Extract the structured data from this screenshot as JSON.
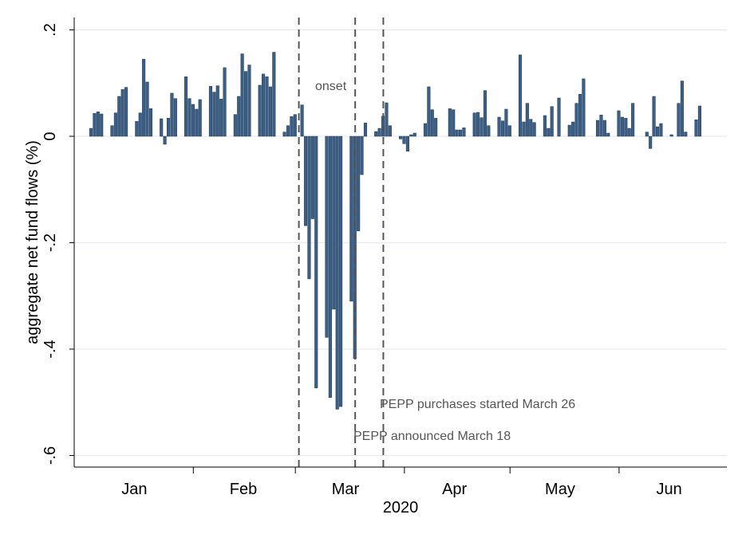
{
  "chart_data": {
    "type": "bar",
    "title": "",
    "xlabel": "2020",
    "ylabel": "aggregate net fund flows (%)",
    "ylim": [
      -0.62,
      0.22
    ],
    "yticks": [
      0.2,
      0,
      -0.2,
      -0.4,
      -0.6
    ],
    "ytick_labels": [
      ".2",
      "0",
      "-.2",
      "-.4",
      "-.6"
    ],
    "xtick_labels": [
      "Jan",
      "Feb",
      "Mar",
      "Apr",
      "May",
      "Jun"
    ],
    "xtick_dates": [
      "2020-01-15",
      "2020-02-15",
      "2020-03-15",
      "2020-04-15",
      "2020-05-15",
      "2020-06-15"
    ],
    "x_range": [
      "2019-12-30",
      "2020-07-01"
    ],
    "grid": true,
    "bar_color": "#3b5f87",
    "annotation_color": "#555555",
    "series": [
      {
        "x": [
          "2020-01-02",
          "2020-01-03",
          "2020-01-04",
          "2020-01-05",
          "2020-01-06",
          "2020-01-07",
          "2020-01-08",
          "2020-01-09",
          "2020-01-10",
          "2020-01-11",
          "2020-01-12",
          "2020-01-13",
          "2020-01-14",
          "2020-01-15",
          "2020-01-16",
          "2020-01-17",
          "2020-01-18",
          "2020-01-19",
          "2020-01-20",
          "2020-01-21",
          "2020-01-22",
          "2020-01-23",
          "2020-01-24",
          "2020-01-25",
          "2020-01-26",
          "2020-01-27",
          "2020-01-28",
          "2020-01-29",
          "2020-01-30",
          "2020-01-31",
          "2020-02-01",
          "2020-02-02",
          "2020-02-03",
          "2020-02-04",
          "2020-02-05",
          "2020-02-06",
          "2020-02-07",
          "2020-02-08",
          "2020-02-09",
          "2020-02-10",
          "2020-02-11",
          "2020-02-12",
          "2020-02-13",
          "2020-02-14",
          "2020-02-15",
          "2020-02-16",
          "2020-02-17",
          "2020-02-18",
          "2020-02-19",
          "2020-02-20",
          "2020-02-21",
          "2020-02-22",
          "2020-02-23",
          "2020-02-24",
          "2020-02-25",
          "2020-02-26",
          "2020-02-27",
          "2020-02-28",
          "2020-02-29",
          "2020-03-01",
          "2020-03-02",
          "2020-03-03",
          "2020-03-04",
          "2020-03-05",
          "2020-03-06",
          "2020-03-07",
          "2020-03-08",
          "2020-03-09",
          "2020-03-10",
          "2020-03-11",
          "2020-03-12",
          "2020-03-13",
          "2020-03-14",
          "2020-03-15",
          "2020-03-16",
          "2020-03-17",
          "2020-03-18",
          "2020-03-19",
          "2020-03-20",
          "2020-03-21",
          "2020-03-22",
          "2020-03-23",
          "2020-03-24",
          "2020-03-25",
          "2020-03-26",
          "2020-03-27",
          "2020-03-28",
          "2020-03-29",
          "2020-03-30",
          "2020-03-31",
          "2020-04-01",
          "2020-04-02",
          "2020-04-03",
          "2020-04-04",
          "2020-04-05",
          "2020-04-06",
          "2020-04-07",
          "2020-04-08",
          "2020-04-09",
          "2020-04-10",
          "2020-04-11",
          "2020-04-12",
          "2020-04-13",
          "2020-04-14",
          "2020-04-15",
          "2020-04-16",
          "2020-04-17",
          "2020-04-18",
          "2020-04-19",
          "2020-04-20",
          "2020-04-21",
          "2020-04-22",
          "2020-04-23",
          "2020-04-24",
          "2020-04-25",
          "2020-04-26",
          "2020-04-27",
          "2020-04-28",
          "2020-04-29",
          "2020-04-30",
          "2020-05-01",
          "2020-05-02",
          "2020-05-03",
          "2020-05-04",
          "2020-05-05",
          "2020-05-06",
          "2020-05-07",
          "2020-05-08",
          "2020-05-09",
          "2020-05-10",
          "2020-05-11",
          "2020-05-12",
          "2020-05-13",
          "2020-05-14",
          "2020-05-15",
          "2020-05-16",
          "2020-05-17",
          "2020-05-18",
          "2020-05-19",
          "2020-05-20",
          "2020-05-21",
          "2020-05-22",
          "2020-05-23",
          "2020-05-24",
          "2020-05-25",
          "2020-05-26",
          "2020-05-27",
          "2020-05-28",
          "2020-05-29",
          "2020-05-30",
          "2020-05-31",
          "2020-06-01",
          "2020-06-02",
          "2020-06-03",
          "2020-06-04",
          "2020-06-05",
          "2020-06-06",
          "2020-06-07",
          "2020-06-08",
          "2020-06-09",
          "2020-06-10",
          "2020-06-11",
          "2020-06-12",
          "2020-06-13",
          "2020-06-14",
          "2020-06-15",
          "2020-06-16",
          "2020-06-17",
          "2020-06-18",
          "2020-06-19",
          "2020-06-20",
          "2020-06-21",
          "2020-06-22",
          "2020-06-23",
          "2020-06-24",
          "2020-06-25",
          "2020-06-26"
        ],
        "values": [
          0.015,
          0.043,
          0.046,
          0.042,
          0,
          0,
          0.02,
          0.044,
          0.075,
          0.088,
          0.092,
          0,
          0,
          0.028,
          0.044,
          0.145,
          0.102,
          0.052,
          0,
          0,
          0.033,
          -0.015,
          0.034,
          0.081,
          0.071,
          0,
          0,
          0.112,
          0.071,
          0.06,
          0.051,
          0.069,
          0,
          0,
          0.094,
          0.083,
          0.095,
          0.07,
          0.129,
          0,
          0,
          0.041,
          0.075,
          0.155,
          0.122,
          0.134,
          0,
          0,
          0.096,
          0.117,
          0.112,
          0.093,
          0.158,
          0,
          0,
          0.008,
          0.02,
          0.037,
          0.041,
          0,
          0.059,
          -0.168,
          -0.268,
          -0.155,
          -0.473,
          0,
          0,
          -0.378,
          -0.491,
          -0.325,
          -0.513,
          -0.508,
          0,
          0,
          -0.31,
          -0.418,
          -0.178,
          -0.072,
          0.025,
          0,
          0,
          0.009,
          0.015,
          0.038,
          0.063,
          0.02,
          0,
          0,
          -0.005,
          -0.014,
          -0.028,
          0.003,
          0.006,
          0,
          0,
          0.024,
          0.093,
          0.05,
          0.034,
          0,
          0,
          0,
          0.052,
          0.05,
          0.012,
          0.012,
          0.016,
          0,
          0,
          0.044,
          0.045,
          0.035,
          0.086,
          0.02,
          0,
          0,
          0.036,
          0.029,
          0.051,
          0.02,
          0,
          0,
          0.153,
          0.027,
          0.062,
          0.032,
          0.026,
          0,
          0,
          0.039,
          0.015,
          0.056,
          0,
          0.072,
          0,
          0,
          0.021,
          0.027,
          0.062,
          0.079,
          0.108,
          0,
          0,
          0,
          0.03,
          0.04,
          0.03,
          0.006,
          0,
          0,
          0.048,
          0.036,
          0.034,
          0.015,
          0.062,
          0,
          0,
          0,
          0.008,
          -0.023,
          0.075,
          0.018,
          0.024,
          0,
          0,
          0.003,
          0,
          0.062,
          0.104,
          0.008,
          0,
          0,
          0.031,
          0.057,
          0,
          0,
          0
        ]
      }
    ],
    "vlines": [
      {
        "x": "2020-03-02",
        "label": "onset"
      },
      {
        "x": "2020-03-18",
        "label": "PEPP announced March 18"
      },
      {
        "x": "2020-03-26",
        "label": "PEPP purchases started March 26"
      }
    ]
  }
}
